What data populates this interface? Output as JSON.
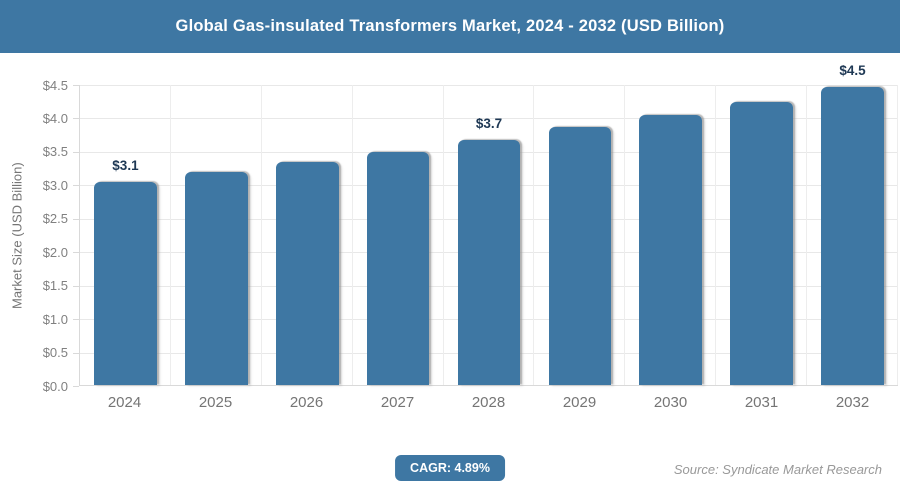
{
  "header": {
    "title": "Global Gas-insulated Transformers Market, 2024 - 2032 (USD Billion)"
  },
  "chart_data": {
    "type": "bar",
    "title": "Global Gas-insulated Transformers Market, 2024 - 2032 (USD Billion)",
    "categories": [
      "2024",
      "2025",
      "2026",
      "2027",
      "2028",
      "2029",
      "2030",
      "2031",
      "2032"
    ],
    "values": [
      3.05,
      3.2,
      3.35,
      3.5,
      3.68,
      3.87,
      4.05,
      4.25,
      4.47
    ],
    "data_labels": [
      "$3.1",
      null,
      null,
      null,
      "$3.7",
      null,
      null,
      null,
      "$4.5"
    ],
    "xlabel": "",
    "ylabel": "Market Size (USD Billion)",
    "ylim": [
      0,
      4.5
    ],
    "ytick_step": 0.5,
    "yticks": [
      "$0.0",
      "$0.5",
      "$1.0",
      "$1.5",
      "$2.0",
      "$2.5",
      "$3.0",
      "$3.5",
      "$4.0",
      "$4.5"
    ],
    "grid": true,
    "legend": false,
    "bar_color": "#3e77a3",
    "data_label_color": "#1e3854",
    "axis_text_color": "#808080",
    "gridline_color": "#e8e8e8"
  },
  "footer": {
    "cagr_label": "CAGR: 4.89%",
    "source": "Source: Syndicate Market Research"
  },
  "colors": {
    "header_bg": "#3e77a3",
    "accent": "#3e77a3",
    "background": "#ffffff"
  }
}
